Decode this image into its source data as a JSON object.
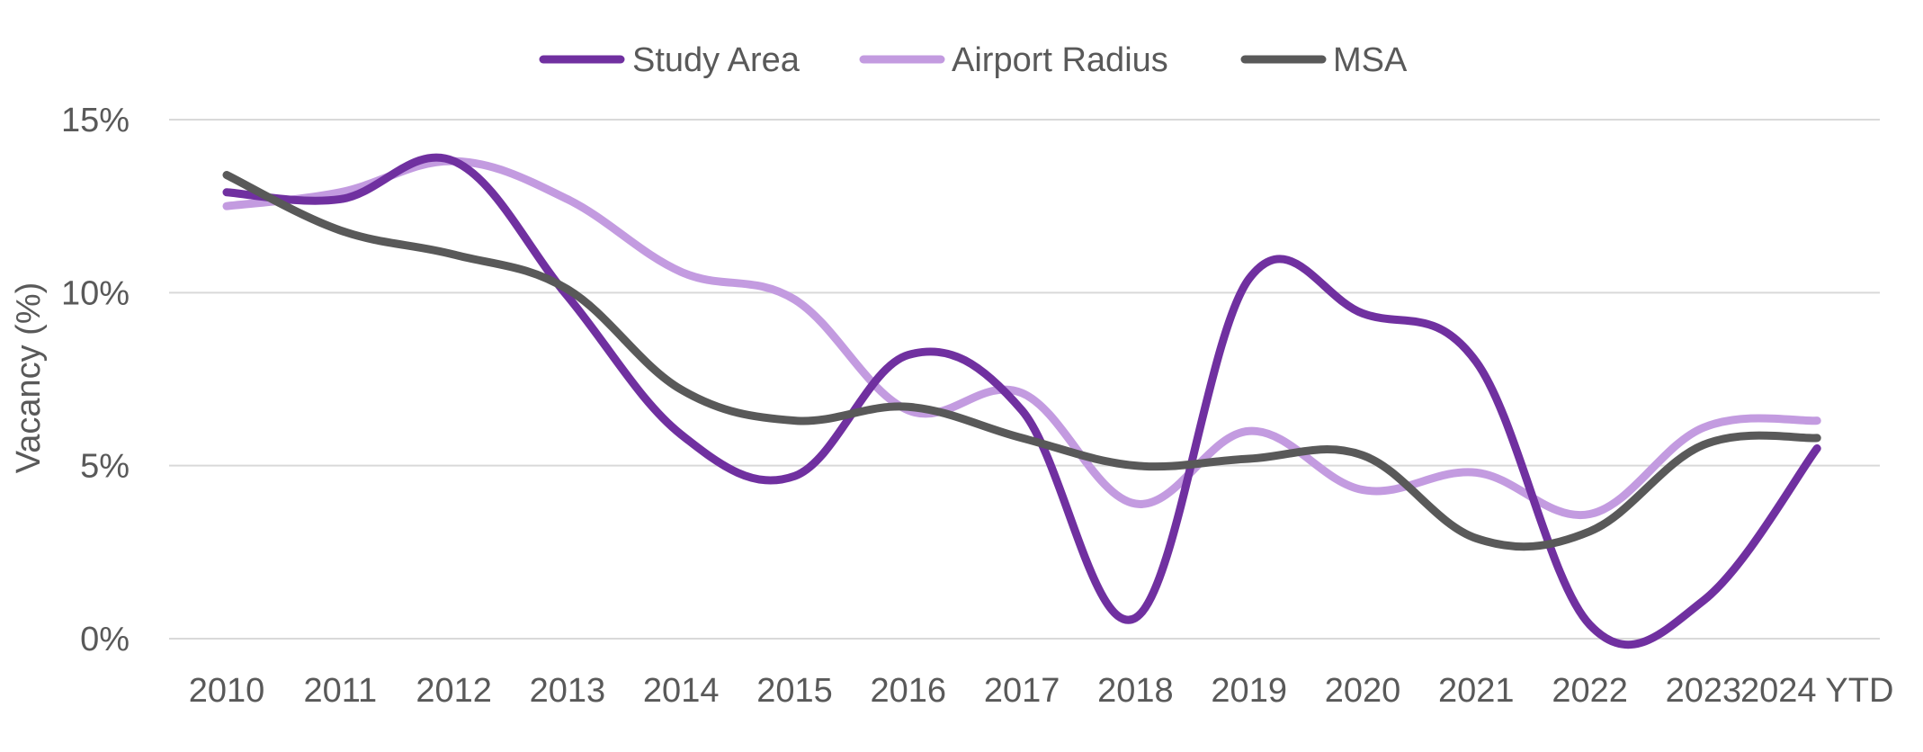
{
  "chart_data": {
    "type": "line",
    "title": "",
    "xlabel": "",
    "ylabel": "Vacancy (%)",
    "ylim": [
      0,
      15
    ],
    "y_ticks": [
      {
        "value": 0,
        "label": "0%"
      },
      {
        "value": 5,
        "label": "5%"
      },
      {
        "value": 10,
        "label": "10%"
      },
      {
        "value": 15,
        "label": "15%"
      }
    ],
    "categories": [
      "2010",
      "2011",
      "2012",
      "2013",
      "2014",
      "2015",
      "2016",
      "2017",
      "2018",
      "2019",
      "2020",
      "2021",
      "2022",
      "2023",
      "2024 YTD"
    ],
    "grid": true,
    "legend_position": "top-center",
    "series": [
      {
        "name": "Study Area",
        "color": "#7030a0",
        "values": [
          12.9,
          12.7,
          13.8,
          9.9,
          5.9,
          4.7,
          8.2,
          6.6,
          0.6,
          10.4,
          9.4,
          8.0,
          0.4,
          1.1,
          5.5
        ]
      },
      {
        "name": "Airport Radius",
        "color": "#c39be0",
        "values": [
          12.5,
          12.9,
          13.8,
          12.7,
          10.6,
          9.8,
          6.6,
          7.1,
          3.9,
          6.0,
          4.3,
          4.8,
          3.6,
          6.1,
          6.3
        ]
      },
      {
        "name": "MSA",
        "color": "#595959",
        "values": [
          13.4,
          11.8,
          11.1,
          10.1,
          7.2,
          6.3,
          6.7,
          5.8,
          5.0,
          5.2,
          5.3,
          2.9,
          3.1,
          5.6,
          5.8
        ]
      }
    ]
  }
}
